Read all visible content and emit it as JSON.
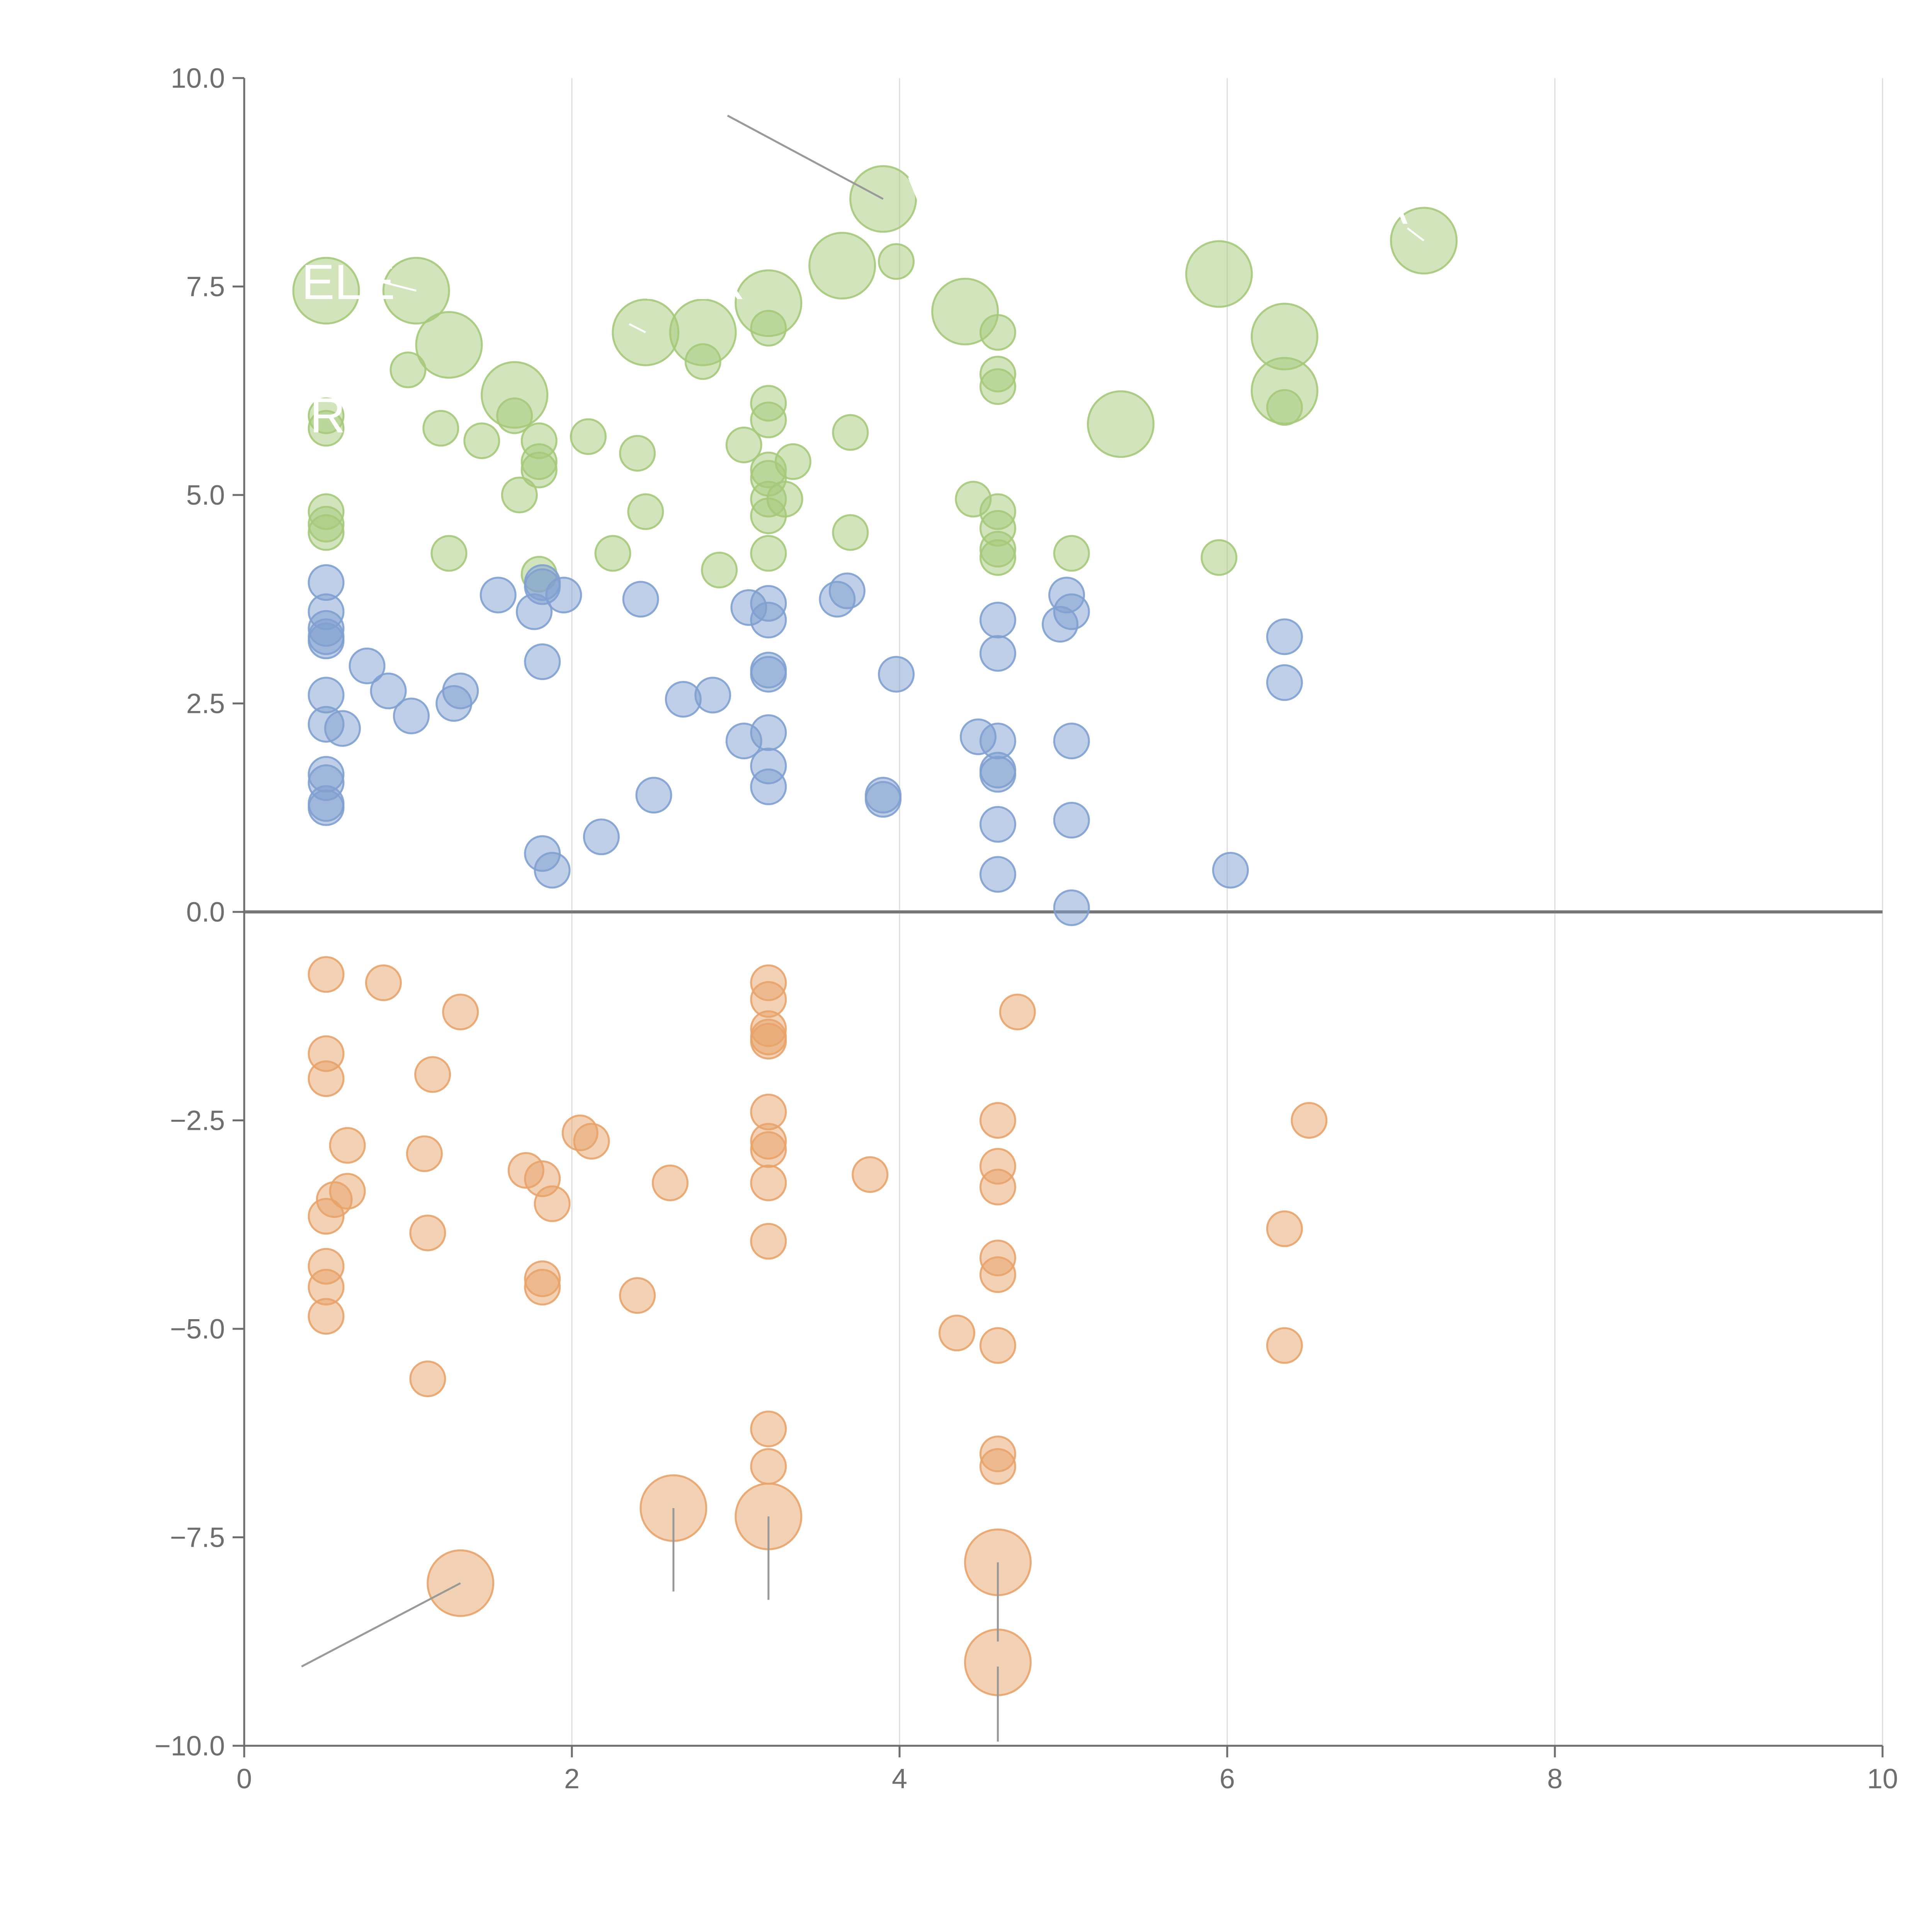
{
  "chart_data": {
    "type": "scatter",
    "subtype": "bubble",
    "title": "",
    "xlabel": "",
    "ylabel": "",
    "xlim": [
      0,
      10
    ],
    "ylim": [
      -10,
      10
    ],
    "x_ticks": [
      "0",
      "2",
      "4",
      "6",
      "8",
      "10"
    ],
    "y_ticks": [
      "−10.0",
      "−7.5",
      "−5.0",
      "−2.5",
      "0.0",
      "2.5",
      "5.0",
      "7.5",
      "10.0"
    ],
    "x_tick_values": [
      0,
      2,
      4,
      6,
      8,
      10
    ],
    "y_tick_values": [
      -10,
      -7.5,
      -5,
      -2.5,
      0,
      2.5,
      5,
      7.5,
      10
    ],
    "grid": "vertical",
    "zero_line": true,
    "legend": "none",
    "colors": {
      "green": "#a5c97a",
      "blue": "#7fa0d0",
      "orange": "#e8a36a",
      "axis": "#6e6e6e",
      "grid": "#dddddd",
      "zero": "#777777",
      "leader": "#999999"
    },
    "series": [
      {
        "name": "green",
        "color": "#a5c97a",
        "points": [
          [
            0.5,
            7.45,
            2
          ],
          [
            1.05,
            7.45,
            2
          ],
          [
            1.25,
            6.8,
            2
          ],
          [
            1.65,
            6.2,
            2
          ],
          [
            2.45,
            6.95,
            2
          ],
          [
            2.8,
            6.95,
            2
          ],
          [
            3.2,
            7.3,
            2
          ],
          [
            3.65,
            7.75,
            2
          ],
          [
            3.9,
            8.55,
            2
          ],
          [
            4.4,
            7.2,
            2
          ],
          [
            5.35,
            5.85,
            2
          ],
          [
            5.95,
            7.65,
            2
          ],
          [
            6.35,
            6.9,
            2
          ],
          [
            6.35,
            6.25,
            2
          ],
          [
            7.2,
            8.05,
            2
          ],
          [
            3.98,
            7.8,
            1
          ],
          [
            1.0,
            6.5,
            1
          ],
          [
            2.8,
            6.6,
            1
          ],
          [
            3.2,
            7.0,
            1
          ],
          [
            4.6,
            6.95,
            1
          ],
          [
            4.6,
            6.45,
            1
          ],
          [
            4.6,
            6.3,
            1
          ],
          [
            0.5,
            5.95,
            1
          ],
          [
            0.5,
            5.8,
            1
          ],
          [
            1.2,
            5.8,
            1
          ],
          [
            1.45,
            5.65,
            1
          ],
          [
            1.65,
            5.95,
            1
          ],
          [
            1.8,
            5.65,
            1
          ],
          [
            1.8,
            5.4,
            1
          ],
          [
            1.8,
            5.3,
            1
          ],
          [
            2.1,
            5.7,
            1
          ],
          [
            2.4,
            5.5,
            1
          ],
          [
            3.05,
            5.6,
            1
          ],
          [
            3.2,
            6.1,
            1
          ],
          [
            3.2,
            5.9,
            1
          ],
          [
            3.2,
            5.3,
            1
          ],
          [
            3.2,
            5.2,
            1
          ],
          [
            3.35,
            5.4,
            1
          ],
          [
            3.7,
            5.75,
            1
          ],
          [
            6.35,
            6.05,
            1
          ],
          [
            1.68,
            5.0,
            1
          ],
          [
            3.2,
            4.95,
            1
          ],
          [
            3.2,
            4.75,
            1
          ],
          [
            3.3,
            4.95,
            1
          ],
          [
            4.45,
            4.95,
            1
          ],
          [
            4.6,
            4.8,
            1
          ],
          [
            4.6,
            4.6,
            1
          ],
          [
            4.6,
            4.35,
            1
          ],
          [
            4.6,
            4.25,
            1
          ],
          [
            0.5,
            4.8,
            1
          ],
          [
            0.5,
            4.65,
            1
          ],
          [
            0.5,
            4.55,
            1
          ],
          [
            2.45,
            4.8,
            1
          ],
          [
            3.7,
            4.55,
            1
          ],
          [
            1.25,
            4.3,
            1
          ],
          [
            2.25,
            4.3,
            1
          ],
          [
            3.2,
            4.3,
            1
          ],
          [
            5.05,
            4.3,
            1
          ],
          [
            5.95,
            4.25,
            1
          ],
          [
            1.8,
            4.05,
            1
          ],
          [
            2.9,
            4.1,
            1
          ]
        ]
      },
      {
        "name": "blue",
        "color": "#7fa0d0",
        "points": [
          [
            0.5,
            3.95,
            1
          ],
          [
            0.5,
            3.6,
            1
          ],
          [
            0.5,
            3.4,
            1
          ],
          [
            0.5,
            3.3,
            1
          ],
          [
            0.5,
            3.25,
            1
          ],
          [
            0.5,
            2.6,
            1
          ],
          [
            0.5,
            2.25,
            1
          ],
          [
            0.6,
            2.2,
            1
          ],
          [
            0.5,
            1.65,
            1
          ],
          [
            0.5,
            1.55,
            1
          ],
          [
            0.5,
            1.3,
            1
          ],
          [
            0.5,
            1.25,
            1
          ],
          [
            0.75,
            2.95,
            1
          ],
          [
            0.88,
            2.65,
            1
          ],
          [
            1.02,
            2.35,
            1
          ],
          [
            1.28,
            2.5,
            1
          ],
          [
            1.32,
            2.65,
            1
          ],
          [
            1.55,
            3.8,
            1
          ],
          [
            1.77,
            3.6,
            1
          ],
          [
            1.82,
            3.9,
            1
          ],
          [
            1.82,
            3.95,
            1
          ],
          [
            1.95,
            3.8,
            1
          ],
          [
            1.82,
            3.0,
            1
          ],
          [
            2.42,
            3.75,
            1
          ],
          [
            3.08,
            3.65,
            1
          ],
          [
            3.2,
            3.7,
            1
          ],
          [
            3.2,
            3.5,
            1
          ],
          [
            3.62,
            3.75,
            1
          ],
          [
            3.68,
            3.85,
            1
          ],
          [
            2.68,
            2.55,
            1
          ],
          [
            2.86,
            2.6,
            1
          ],
          [
            3.2,
            2.9,
            1
          ],
          [
            3.2,
            2.85,
            1
          ],
          [
            3.98,
            2.85,
            1
          ],
          [
            4.6,
            3.5,
            1
          ],
          [
            4.6,
            3.1,
            1
          ],
          [
            5.02,
            3.8,
            1
          ],
          [
            5.05,
            3.6,
            1
          ],
          [
            4.98,
            3.45,
            1
          ],
          [
            6.35,
            3.3,
            1
          ],
          [
            6.35,
            2.75,
            1
          ],
          [
            3.05,
            2.05,
            1
          ],
          [
            3.2,
            2.15,
            1
          ],
          [
            3.2,
            1.75,
            1
          ],
          [
            3.2,
            1.5,
            1
          ],
          [
            4.48,
            2.1,
            1
          ],
          [
            4.6,
            2.05,
            1
          ],
          [
            4.6,
            1.7,
            1
          ],
          [
            4.6,
            1.65,
            1
          ],
          [
            5.05,
            2.05,
            1
          ],
          [
            3.9,
            1.4,
            1
          ],
          [
            3.9,
            1.35,
            1
          ],
          [
            2.5,
            1.4,
            1
          ],
          [
            2.18,
            0.9,
            1
          ],
          [
            1.82,
            0.7,
            1
          ],
          [
            1.88,
            0.5,
            1
          ],
          [
            4.6,
            1.05,
            1
          ],
          [
            5.05,
            1.1,
            1
          ],
          [
            4.6,
            0.45,
            1
          ],
          [
            6.02,
            0.5,
            1
          ],
          [
            5.05,
            0.05,
            1
          ]
        ]
      },
      {
        "name": "orange",
        "color": "#e8a36a",
        "points": [
          [
            0.5,
            -0.75,
            1
          ],
          [
            0.85,
            -0.85,
            1
          ],
          [
            1.32,
            -1.2,
            1
          ],
          [
            3.2,
            -0.85,
            1
          ],
          [
            3.2,
            -1.05,
            1
          ],
          [
            3.2,
            -1.4,
            1
          ],
          [
            3.2,
            -1.5,
            1
          ],
          [
            3.2,
            -1.55,
            1
          ],
          [
            4.72,
            -1.2,
            1
          ],
          [
            0.5,
            -1.7,
            1
          ],
          [
            0.5,
            -2.0,
            1
          ],
          [
            1.15,
            -1.95,
            1
          ],
          [
            0.63,
            -2.8,
            1
          ],
          [
            1.1,
            -2.9,
            1
          ],
          [
            2.05,
            -2.65,
            1
          ],
          [
            2.12,
            -2.75,
            1
          ],
          [
            1.72,
            -3.1,
            1
          ],
          [
            1.82,
            -3.2,
            1
          ],
          [
            1.88,
            -3.5,
            1
          ],
          [
            2.6,
            -3.25,
            1
          ],
          [
            3.2,
            -2.4,
            1
          ],
          [
            3.2,
            -2.75,
            1
          ],
          [
            3.2,
            -2.85,
            1
          ],
          [
            3.2,
            -3.25,
            1
          ],
          [
            3.82,
            -3.15,
            1
          ],
          [
            4.6,
            -2.5,
            1
          ],
          [
            4.6,
            -3.05,
            1
          ],
          [
            4.6,
            -3.3,
            1
          ],
          [
            6.5,
            -2.5,
            1
          ],
          [
            0.63,
            -3.35,
            1
          ],
          [
            0.55,
            -3.45,
            1
          ],
          [
            0.5,
            -3.65,
            1
          ],
          [
            1.12,
            -3.85,
            1
          ],
          [
            3.2,
            -3.95,
            1
          ],
          [
            0.5,
            -4.25,
            1
          ],
          [
            0.5,
            -4.5,
            1
          ],
          [
            0.5,
            -4.85,
            1
          ],
          [
            1.82,
            -4.4,
            1
          ],
          [
            1.82,
            -4.5,
            1
          ],
          [
            2.4,
            -4.6,
            1
          ],
          [
            4.6,
            -4.15,
            1
          ],
          [
            4.6,
            -4.35,
            1
          ],
          [
            6.35,
            -3.8,
            1
          ],
          [
            4.35,
            -5.05,
            1
          ],
          [
            4.6,
            -5.2,
            1
          ],
          [
            6.35,
            -5.2,
            1
          ],
          [
            1.12,
            -5.6,
            1
          ],
          [
            3.2,
            -6.2,
            1
          ],
          [
            3.2,
            -6.65,
            1
          ],
          [
            4.6,
            -6.5,
            1
          ],
          [
            4.6,
            -6.65,
            1
          ],
          [
            2.62,
            -7.15,
            2
          ],
          [
            3.2,
            -7.25,
            2
          ],
          [
            4.6,
            -7.8,
            2
          ],
          [
            1.32,
            -8.05,
            2
          ],
          [
            4.6,
            -9.0,
            2
          ]
        ]
      }
    ],
    "annotations": [
      {
        "text": "V",
        "x": 4.05,
        "y": 8.4,
        "leader_to": [
          2.95,
          9.55
        ],
        "leader_from": [
          3.9,
          8.55
        ]
      },
      {
        "text": "ELE",
        "x": 0.35,
        "y": 7.35,
        "leader_from": [
          1.05,
          7.45
        ],
        "leader_to": [
          0.85,
          7.55
        ]
      },
      {
        "text": "OPER",
        "x": 2.2,
        "y": 7.35,
        "leader_from": [
          2.45,
          6.95
        ],
        "leader_to": [
          2.35,
          7.05
        ]
      },
      {
        "text": "R",
        "x": 0.4,
        "y": 5.75
      },
      {
        "text": "A",
        "x": 6.9,
        "y": 8.25,
        "leader_from": [
          7.2,
          8.05
        ],
        "leader_to": [
          7.1,
          8.2
        ]
      }
    ],
    "leader_lines": [
      {
        "from": [
          0.35,
          -9.05
        ],
        "to": [
          1.32,
          -8.05
        ]
      },
      {
        "from": [
          2.62,
          -7.15
        ],
        "to": [
          2.62,
          -8.15
        ]
      },
      {
        "from": [
          3.2,
          -7.25
        ],
        "to": [
          3.2,
          -8.25
        ]
      },
      {
        "from": [
          4.6,
          -7.8
        ],
        "to": [
          4.6,
          -8.75
        ]
      },
      {
        "from": [
          4.6,
          -9.05
        ],
        "to": [
          4.6,
          -9.95
        ]
      }
    ]
  }
}
